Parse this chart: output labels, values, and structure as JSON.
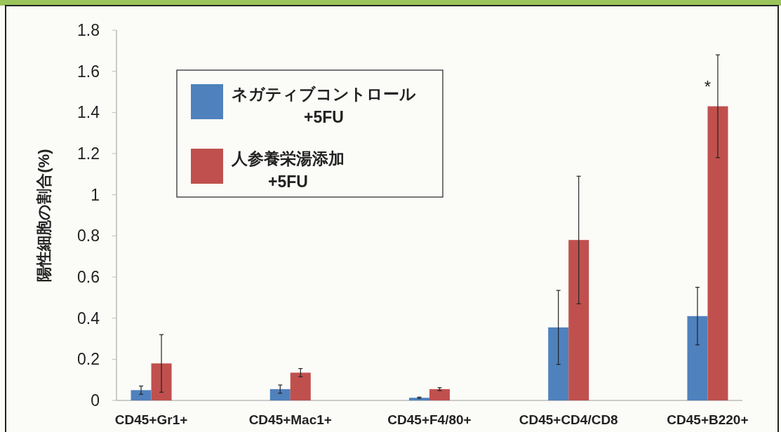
{
  "chart_data": {
    "type": "bar",
    "ylabel": "陽性細胞の割合(%)",
    "categories": [
      "CD45+Gr1+",
      "CD45+Mac1+",
      "CD45+F4/80+",
      "CD45+CD4/CD8",
      "CD45+B220+"
    ],
    "series": [
      {
        "name": "ネガティブコントロール +5FU",
        "color": "#4f81bd",
        "values": [
          0.05,
          0.055,
          0.013,
          0.355,
          0.41
        ],
        "errors": [
          0.02,
          0.02,
          0.003,
          0.18,
          0.14
        ]
      },
      {
        "name": "人参養栄湯添加 +5FU",
        "color": "#c0504d",
        "values": [
          0.18,
          0.135,
          0.055,
          0.78,
          1.43
        ],
        "errors": [
          0.14,
          0.02,
          0.007,
          0.31,
          0.25
        ]
      }
    ],
    "ylim": [
      0,
      1.8
    ],
    "yticks": [
      0,
      0.2,
      0.4,
      0.6,
      0.8,
      1,
      1.2,
      1.4,
      1.6,
      1.8
    ],
    "annotations": [
      {
        "text": "*",
        "x": "CD45+B220+",
        "y": 1.43
      }
    ],
    "legend": "top left",
    "grid": false
  }
}
